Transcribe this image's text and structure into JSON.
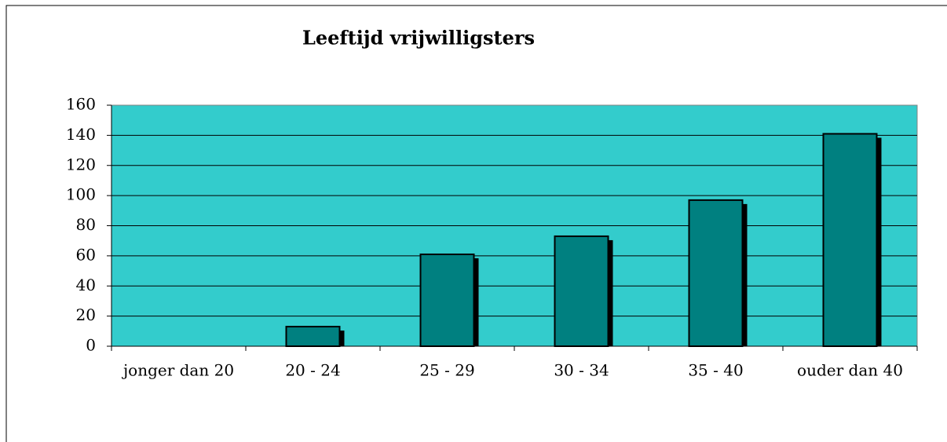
{
  "chart_data": {
    "type": "bar",
    "title": "Leeftijd vrijwilligsters",
    "categories": [
      "jonger dan 20",
      "20 - 24",
      "25 - 29",
      "30 - 34",
      "35 - 40",
      "ouder dan 40"
    ],
    "values": [
      0,
      13,
      61,
      73,
      97,
      141
    ],
    "color": "#008080",
    "background": "#33cccc",
    "ylim": [
      0,
      160
    ],
    "yticks": [
      0,
      20,
      40,
      60,
      80,
      100,
      120,
      140,
      160
    ],
    "grid": true
  }
}
